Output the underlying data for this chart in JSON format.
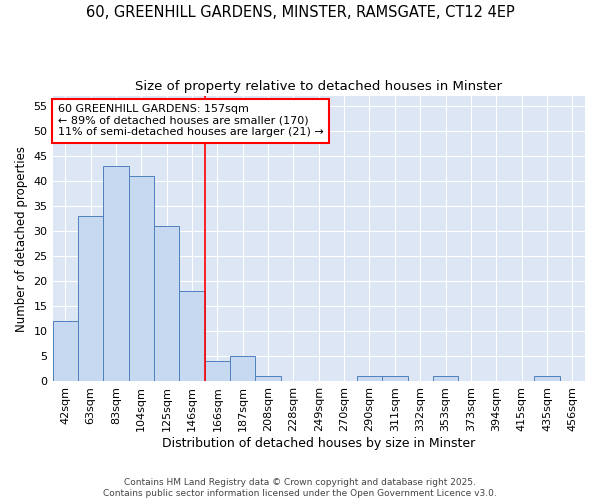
{
  "title1": "60, GREENHILL GARDENS, MINSTER, RAMSGATE, CT12 4EP",
  "title2": "Size of property relative to detached houses in Minster",
  "xlabel": "Distribution of detached houses by size in Minster",
  "ylabel": "Number of detached properties",
  "bar_labels": [
    "42sqm",
    "63sqm",
    "83sqm",
    "104sqm",
    "125sqm",
    "146sqm",
    "166sqm",
    "187sqm",
    "208sqm",
    "228sqm",
    "249sqm",
    "270sqm",
    "290sqm",
    "311sqm",
    "332sqm",
    "353sqm",
    "373sqm",
    "394sqm",
    "415sqm",
    "435sqm",
    "456sqm"
  ],
  "bar_values": [
    12,
    33,
    43,
    41,
    31,
    18,
    4,
    5,
    1,
    0,
    0,
    0,
    1,
    1,
    0,
    1,
    0,
    0,
    0,
    1,
    0
  ],
  "bar_color": "#c6d9f0",
  "bar_edge_color": "#4f81bd",
  "vline_x": 6.0,
  "vline_color": "red",
  "annotation_text": "60 GREENHILL GARDENS: 157sqm\n← 89% of detached houses are smaller (170)\n11% of semi-detached houses are larger (21) →",
  "annotation_box_color": "white",
  "annotation_box_edge_color": "red",
  "ylim": [
    0,
    57
  ],
  "yticks": [
    0,
    5,
    10,
    15,
    20,
    25,
    30,
    35,
    40,
    45,
    50,
    55
  ],
  "bg_color": "#dce6f5",
  "footer_text": "Contains HM Land Registry data © Crown copyright and database right 2025.\nContains public sector information licensed under the Open Government Licence v3.0.",
  "title1_fontsize": 10.5,
  "title2_fontsize": 9.5,
  "xlabel_fontsize": 9,
  "ylabel_fontsize": 8.5,
  "tick_fontsize": 8,
  "annot_fontsize": 8,
  "footer_fontsize": 6.5
}
